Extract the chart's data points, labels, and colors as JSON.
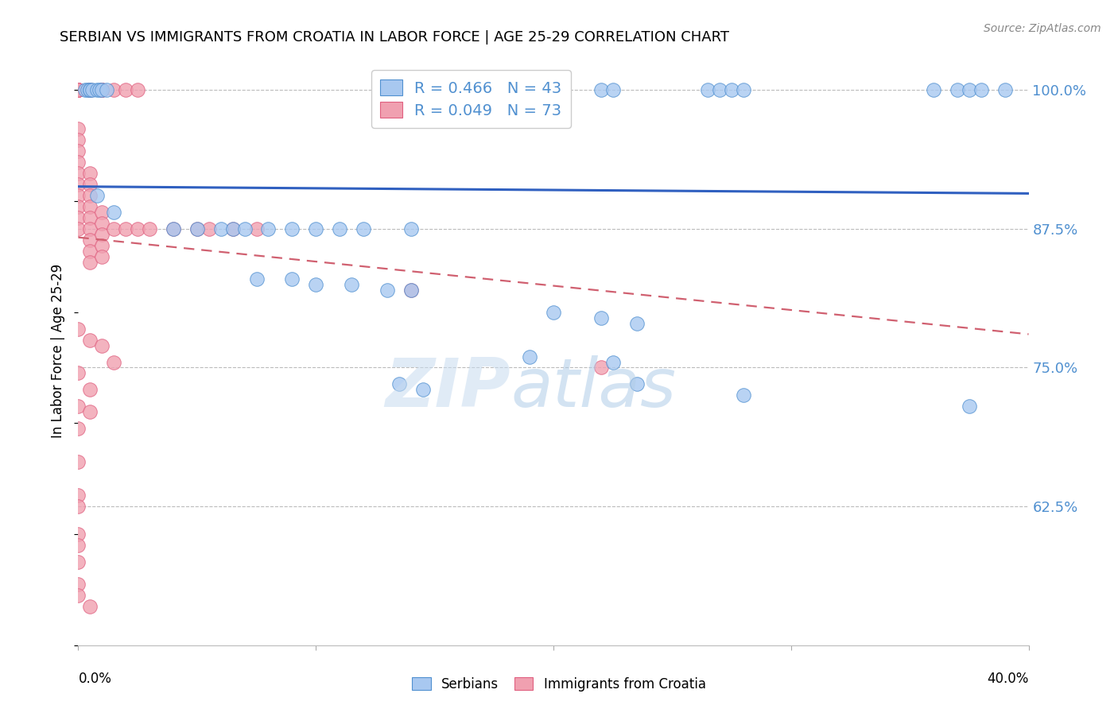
{
  "title": "SERBIAN VS IMMIGRANTS FROM CROATIA IN LABOR FORCE | AGE 25-29 CORRELATION CHART",
  "source": "Source: ZipAtlas.com",
  "ylabel": "In Labor Force | Age 25-29",
  "ytick_vals": [
    1.0,
    0.875,
    0.75,
    0.625
  ],
  "ytick_labels": [
    "100.0%",
    "87.5%",
    "75.0%",
    "62.5%"
  ],
  "xlim": [
    0.0,
    0.4
  ],
  "ylim": [
    0.5,
    1.03
  ],
  "blue_r": 0.466,
  "blue_n": 43,
  "pink_r": 0.049,
  "pink_n": 73,
  "blue_fill": "#A8C8F0",
  "blue_edge": "#5090D0",
  "pink_fill": "#F0A0B0",
  "pink_edge": "#E06080",
  "blue_line": "#3060C0",
  "pink_line": "#D06070",
  "grid_color": "#BBBBBB",
  "background": "#FFFFFF",
  "blue_scatter_x": [
    0.003,
    0.004,
    0.005,
    0.005,
    0.006,
    0.008,
    0.009,
    0.01,
    0.012,
    0.155,
    0.16,
    0.165,
    0.17,
    0.175,
    0.18,
    0.19,
    0.2,
    0.22,
    0.225,
    0.265,
    0.27,
    0.275,
    0.28,
    0.36,
    0.37,
    0.375,
    0.38,
    0.39,
    0.008,
    0.015,
    0.04,
    0.05,
    0.06,
    0.065,
    0.07,
    0.08,
    0.09,
    0.1,
    0.11,
    0.12,
    0.14,
    0.075,
    0.09,
    0.1,
    0.115,
    0.13,
    0.14,
    0.2,
    0.22,
    0.235,
    0.135,
    0.145,
    0.235,
    0.28,
    0.19,
    0.225,
    0.375
  ],
  "blue_scatter_y": [
    1.0,
    1.0,
    1.0,
    1.0,
    1.0,
    1.0,
    1.0,
    1.0,
    1.0,
    1.0,
    1.0,
    1.0,
    1.0,
    1.0,
    1.0,
    1.0,
    1.0,
    1.0,
    1.0,
    1.0,
    1.0,
    1.0,
    1.0,
    1.0,
    1.0,
    1.0,
    1.0,
    1.0,
    0.905,
    0.89,
    0.875,
    0.875,
    0.875,
    0.875,
    0.875,
    0.875,
    0.875,
    0.875,
    0.875,
    0.875,
    0.875,
    0.83,
    0.83,
    0.825,
    0.825,
    0.82,
    0.82,
    0.8,
    0.795,
    0.79,
    0.735,
    0.73,
    0.735,
    0.725,
    0.76,
    0.755,
    0.715
  ],
  "pink_scatter_x": [
    0.0,
    0.0,
    0.0,
    0.0,
    0.0,
    0.0,
    0.0,
    0.0,
    0.0,
    0.0,
    0.005,
    0.005,
    0.005,
    0.005,
    0.005,
    0.01,
    0.01,
    0.01,
    0.015,
    0.02,
    0.025,
    0.0,
    0.0,
    0.0,
    0.0,
    0.0,
    0.0,
    0.0,
    0.0,
    0.0,
    0.0,
    0.005,
    0.005,
    0.005,
    0.005,
    0.005,
    0.005,
    0.005,
    0.005,
    0.005,
    0.01,
    0.01,
    0.01,
    0.01,
    0.01,
    0.015,
    0.02,
    0.025,
    0.03,
    0.04,
    0.05,
    0.055,
    0.065,
    0.075,
    0.14,
    0.0,
    0.005,
    0.01,
    0.015,
    0.0,
    0.005,
    0.0,
    0.005,
    0.0,
    0.0,
    0.0,
    0.0,
    0.0,
    0.0,
    0.0,
    0.22,
    0.005,
    0.0,
    0.0
  ],
  "pink_scatter_y": [
    1.0,
    1.0,
    1.0,
    1.0,
    1.0,
    1.0,
    1.0,
    1.0,
    1.0,
    1.0,
    1.0,
    1.0,
    1.0,
    1.0,
    1.0,
    1.0,
    1.0,
    1.0,
    1.0,
    1.0,
    1.0,
    0.965,
    0.955,
    0.945,
    0.935,
    0.925,
    0.915,
    0.905,
    0.895,
    0.885,
    0.875,
    0.925,
    0.915,
    0.905,
    0.895,
    0.885,
    0.875,
    0.865,
    0.855,
    0.845,
    0.89,
    0.88,
    0.87,
    0.86,
    0.85,
    0.875,
    0.875,
    0.875,
    0.875,
    0.875,
    0.875,
    0.875,
    0.875,
    0.875,
    0.82,
    0.785,
    0.775,
    0.77,
    0.755,
    0.745,
    0.73,
    0.715,
    0.71,
    0.695,
    0.665,
    0.635,
    0.625,
    0.6,
    0.59,
    0.575,
    0.75,
    0.535,
    0.555,
    0.545
  ]
}
